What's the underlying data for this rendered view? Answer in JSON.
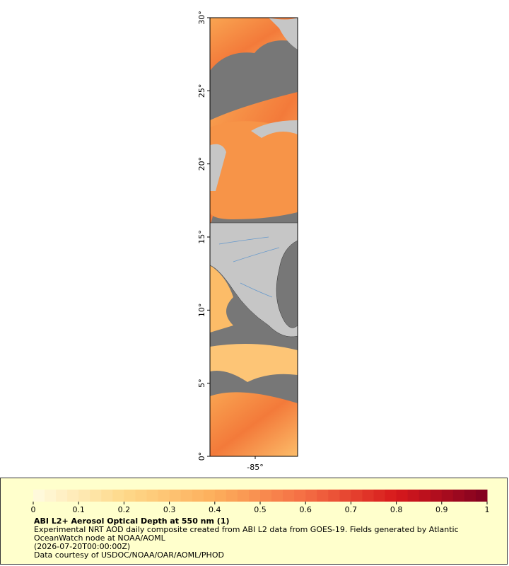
{
  "map": {
    "ylim": [
      0,
      30
    ],
    "xlim": [
      -88.2,
      -82.0
    ],
    "yticks": [
      {
        "value": 0,
        "label": "0°"
      },
      {
        "value": 5,
        "label": "5°"
      },
      {
        "value": 10,
        "label": "10°"
      },
      {
        "value": 15,
        "label": "15°"
      },
      {
        "value": 20,
        "label": "20°"
      },
      {
        "value": 25,
        "label": "25°"
      },
      {
        "value": 30,
        "label": "30°"
      }
    ],
    "xticks": [
      {
        "value": -85,
        "label": "-85°"
      }
    ]
  },
  "legend": {
    "colorbar_range": [
      0,
      1
    ],
    "colorbar_ticks": [
      0,
      0.1,
      0.2,
      0.3,
      0.4,
      0.5,
      0.6,
      0.7,
      0.8,
      0.9,
      1
    ],
    "colors": [
      "#fffbe0",
      "#fed98a",
      "#fdae5b",
      "#f46d43",
      "#d7191c",
      "#7f0020"
    ],
    "title": "ABI L2+ Aerosol Optical Depth at 550 nm (1)",
    "description": "Experimental NRT AOD daily composite created from ABI L2 data from GOES-19. Fields generated by Atlantic OceanWatch node at NOAA/AOML",
    "time": "(2026-07-20T00:00:00Z)",
    "credit": "Data courtesy of USDOC/NOAA/OAR/AOML/PHOD"
  }
}
